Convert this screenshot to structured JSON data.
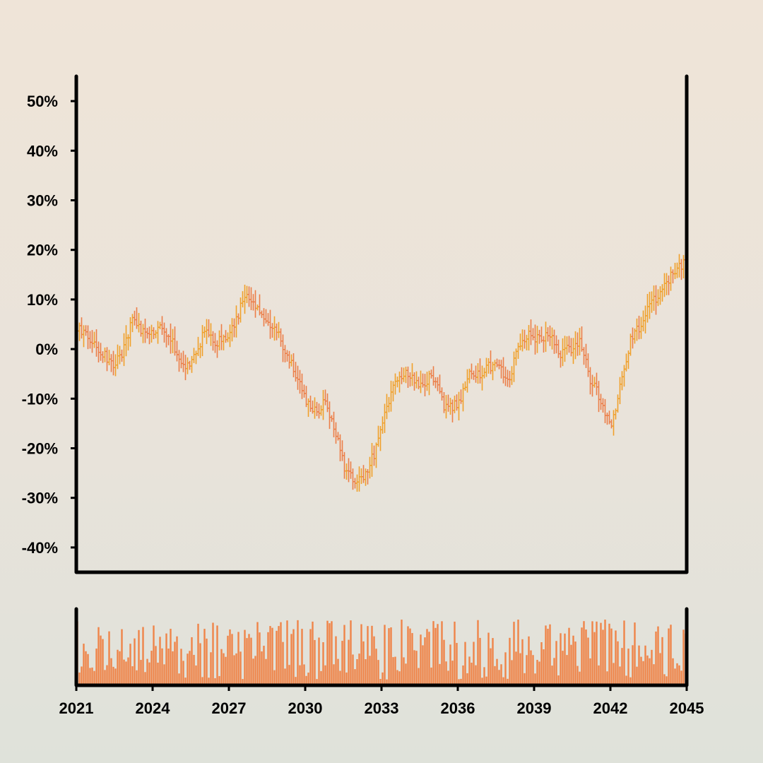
{
  "colors": {
    "up": "#f0a02a",
    "down": "#ec7e48",
    "volume": "#ef8448",
    "axis": "#000000"
  },
  "chart_data": {
    "type": "ohlc",
    "title": "",
    "xlabel": "",
    "ylabel": "",
    "x_range": [
      2021.0,
      2045.0
    ],
    "ylim": [
      -45,
      55
    ],
    "y_ticks": [
      -40,
      -30,
      -20,
      -10,
      0,
      10,
      20,
      30,
      40,
      50
    ],
    "y_tick_labels": [
      "-40%",
      "-30%",
      "-20%",
      "-10%",
      "0%",
      "10%",
      "20%",
      "30%",
      "40%",
      "50%"
    ],
    "x_ticks": [
      2021,
      2024,
      2027,
      2030,
      2033,
      2036,
      2039,
      2042,
      2045
    ],
    "x_tick_labels": [
      "2021",
      "2024",
      "2027",
      "2030",
      "2033",
      "2036",
      "2039",
      "2042",
      "2045"
    ],
    "period_per_bar": "1 month",
    "close_path": {
      "t": [
        2021.0,
        2021.5,
        2022.1,
        2022.5,
        2022.9,
        2023.2,
        2023.6,
        2024.0,
        2024.4,
        2024.9,
        2025.3,
        2025.6,
        2026.1,
        2026.5,
        2026.8,
        2027.3,
        2027.7,
        2028.0,
        2028.4,
        2028.8,
        2029.2,
        2029.6,
        2030.0,
        2030.4,
        2030.8,
        2031.2,
        2031.6,
        2032.0,
        2032.4,
        2032.8,
        2033.2,
        2033.6,
        2034.0,
        2034.5,
        2035.0,
        2035.5,
        2036.0,
        2036.5,
        2037.0,
        2037.5,
        2038.0,
        2038.4,
        2038.8,
        2039.2,
        2039.6,
        2040.0,
        2040.4,
        2040.8,
        2041.2,
        2041.6,
        2042.0,
        2042.4,
        2042.8,
        2043.2,
        2043.6,
        2044.0,
        2044.4,
        2044.8,
        2045.0
      ],
      "v": [
        5,
        2,
        -1,
        -3,
        0,
        6,
        3,
        3,
        5,
        0,
        -4,
        -2,
        4,
        1,
        2,
        6,
        12,
        9,
        5,
        5,
        0,
        -5,
        -10,
        -13,
        -10,
        -17,
        -25,
        -27,
        -25,
        -20,
        -12,
        -6,
        -5,
        -8,
        -5,
        -12,
        -11,
        -5,
        -5,
        -2,
        -7,
        1,
        3,
        2,
        3,
        -1,
        0,
        2,
        -6,
        -10,
        -16,
        -7,
        2,
        5,
        9,
        11,
        15,
        17,
        17
      ]
    },
    "volume": {
      "scale": "relative",
      "seed": 37
    }
  }
}
